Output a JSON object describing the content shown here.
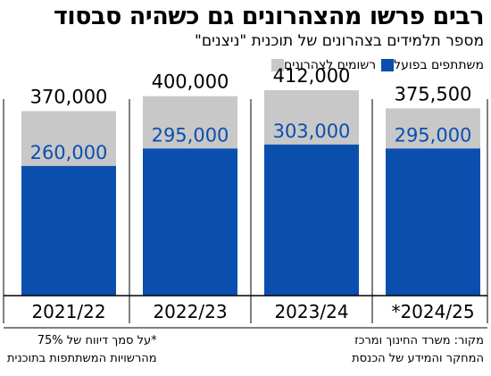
{
  "title": "רבים פרשו מהצהרונים גם כשהיה סבסוד",
  "subtitle": "מספר תלמידים בצהרונים של תוכנית \"ניצנים\"",
  "colors": {
    "registered": "#c8c8c8",
    "participating": "#0b4fae"
  },
  "chart_data": {
    "type": "bar",
    "categories": [
      "2021/22",
      "2022/23",
      "2023/24",
      "*2024/25"
    ],
    "series": [
      {
        "name": "רשומים לצהרונים",
        "values": [
          370000,
          400000,
          412000,
          375500
        ],
        "labels": [
          "370,000",
          "400,000",
          "412,000",
          "375,500"
        ]
      },
      {
        "name": "משתתפים בפועל",
        "values": [
          260000,
          295000,
          303000,
          295000
        ],
        "labels": [
          "260,000",
          "295,000",
          "303,000",
          "295,000"
        ]
      }
    ],
    "ylim": [
      0,
      412000
    ],
    "grid": false,
    "legend_position": "top-right"
  },
  "footer": {
    "note_line1": "*על סמך דיווח של 75%",
    "note_line2": "מהרשויות המשתתפות בתוכנית",
    "source_line1": "מקור: משרד החינוך ומרכז",
    "source_line2": "המחקר והמידע של הכנסת"
  }
}
